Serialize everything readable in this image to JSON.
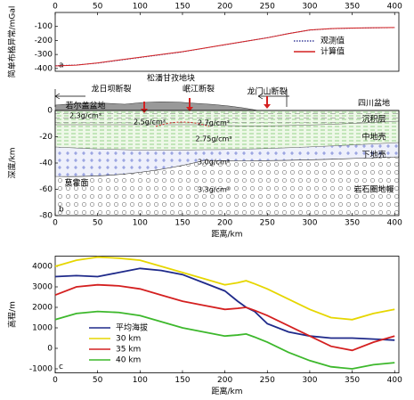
{
  "charts": [
    {
      "type": "line",
      "panel_label": "a",
      "ylabel": "简单布格异常/mGal",
      "x": [
        0,
        25,
        50,
        75,
        100,
        125,
        150,
        175,
        200,
        225,
        250,
        275,
        300,
        325,
        350,
        375,
        400
      ],
      "series": [
        {
          "name": "观测值",
          "color": "#3a3f9a",
          "dash": "dotted",
          "values": [
            -380,
            -375,
            -362,
            -342,
            -322,
            -302,
            -282,
            -256,
            -231,
            -206,
            -180,
            -150,
            -126,
            -116,
            -112,
            -110,
            -108
          ]
        },
        {
          "name": "计算值",
          "color": "#d42020",
          "values": [
            -382,
            -376,
            -360,
            -340,
            -320,
            -300,
            -280,
            -255,
            -230,
            -205,
            -181,
            -151,
            -125,
            -115,
            -111,
            -109,
            -107
          ]
        }
      ],
      "xlim": [
        0,
        405
      ],
      "xticks": [
        0,
        50,
        100,
        150,
        200,
        250,
        300,
        350,
        400
      ],
      "ylim": [
        -420,
        0
      ],
      "yticks": [
        -100,
        -200,
        -300,
        -400
      ]
    },
    {
      "type": "section",
      "panel_label": "b",
      "ylabel": "深度/km",
      "xlabel": "距离/km",
      "block_label": "松潘甘孜地块",
      "basin_west": "若尔盖盆地",
      "basin_east": "四川盆地",
      "faults": [
        "龙日坝断裂",
        "岷江断裂",
        "龙门山断裂"
      ],
      "densities": [
        "2.3g/cm³",
        "2.5g/cm³",
        "2.7g/cm³",
        "2.75g/cm³",
        "3.0g/cm³",
        "3.3g/cm³"
      ],
      "units": [
        "沉积层",
        "中地壳",
        "下地壳",
        "岩石圈地幔"
      ],
      "moho_label": "莫霍面",
      "xlim": [
        0,
        405
      ],
      "xticks": [
        0,
        50,
        100,
        150,
        200,
        250,
        300,
        350,
        400
      ],
      "ylim": [
        -80,
        0
      ],
      "yticks": [
        0,
        -20,
        -40,
        -60,
        -80
      ]
    },
    {
      "type": "line",
      "panel_label": "c",
      "ylabel": "高程/m",
      "xlabel": "距离/km",
      "x": [
        0,
        25,
        50,
        75,
        100,
        125,
        150,
        175,
        200,
        215,
        225,
        235,
        250,
        275,
        300,
        325,
        350,
        375,
        400
      ],
      "series": [
        {
          "name": "平均海拔",
          "color": "#1f2a8a",
          "values": [
            3500,
            3550,
            3500,
            3700,
            3900,
            3800,
            3600,
            3200,
            2800,
            2300,
            2000,
            1800,
            1200,
            800,
            600,
            500,
            500,
            450,
            400
          ]
        },
        {
          "name": "30 km",
          "color": "#e6d600",
          "values": [
            4000,
            4300,
            4450,
            4400,
            4300,
            4000,
            3700,
            3400,
            3100,
            3200,
            3300,
            3150,
            2900,
            2400,
            1900,
            1500,
            1400,
            1700,
            1900
          ]
        },
        {
          "name": "35 km",
          "color": "#d42020",
          "values": [
            2600,
            3000,
            3100,
            3050,
            2900,
            2600,
            2300,
            2100,
            1900,
            1950,
            2000,
            1850,
            1600,
            1100,
            600,
            100,
            -100,
            300,
            600
          ]
        },
        {
          "name": "40 km",
          "color": "#3db82c",
          "values": [
            1400,
            1700,
            1800,
            1750,
            1600,
            1300,
            1000,
            800,
            600,
            650,
            700,
            550,
            300,
            -200,
            -600,
            -900,
            -1000,
            -800,
            -700
          ]
        }
      ],
      "xlim": [
        0,
        405
      ],
      "xticks": [
        0,
        50,
        100,
        150,
        200,
        250,
        300,
        350,
        400
      ],
      "ylim": [
        -1200,
        4500
      ],
      "yticks": [
        4000,
        3000,
        2000,
        1000,
        0,
        -1000
      ]
    }
  ]
}
